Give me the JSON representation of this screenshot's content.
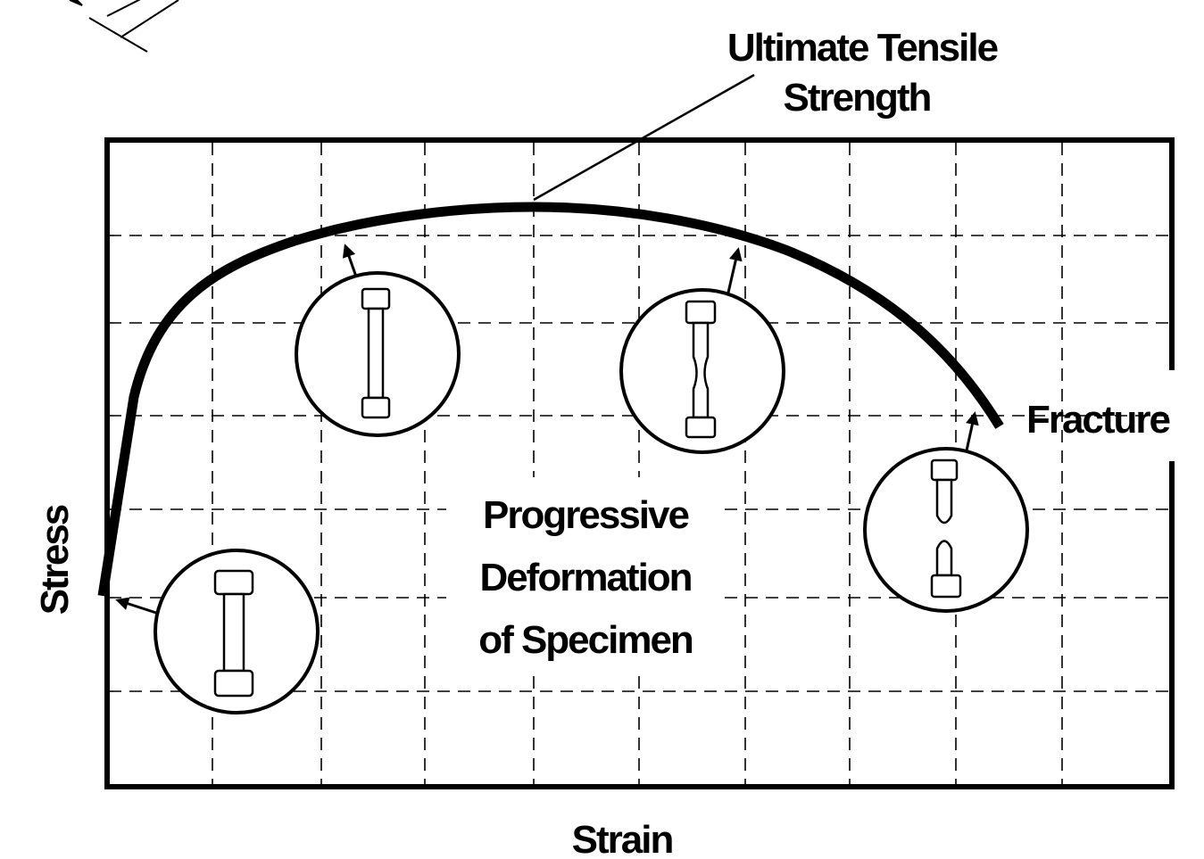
{
  "diagram": {
    "ultimate_tensile_strength": {
      "lines": [
        "Ultimate Tensile",
        "Strength"
      ]
    },
    "fracture": "Fracture",
    "center_label": {
      "lines": [
        "Progressive",
        "Deformation",
        "of Specimen"
      ]
    },
    "y_axis_label": "Stress",
    "x_axis_label": "Strain"
  }
}
